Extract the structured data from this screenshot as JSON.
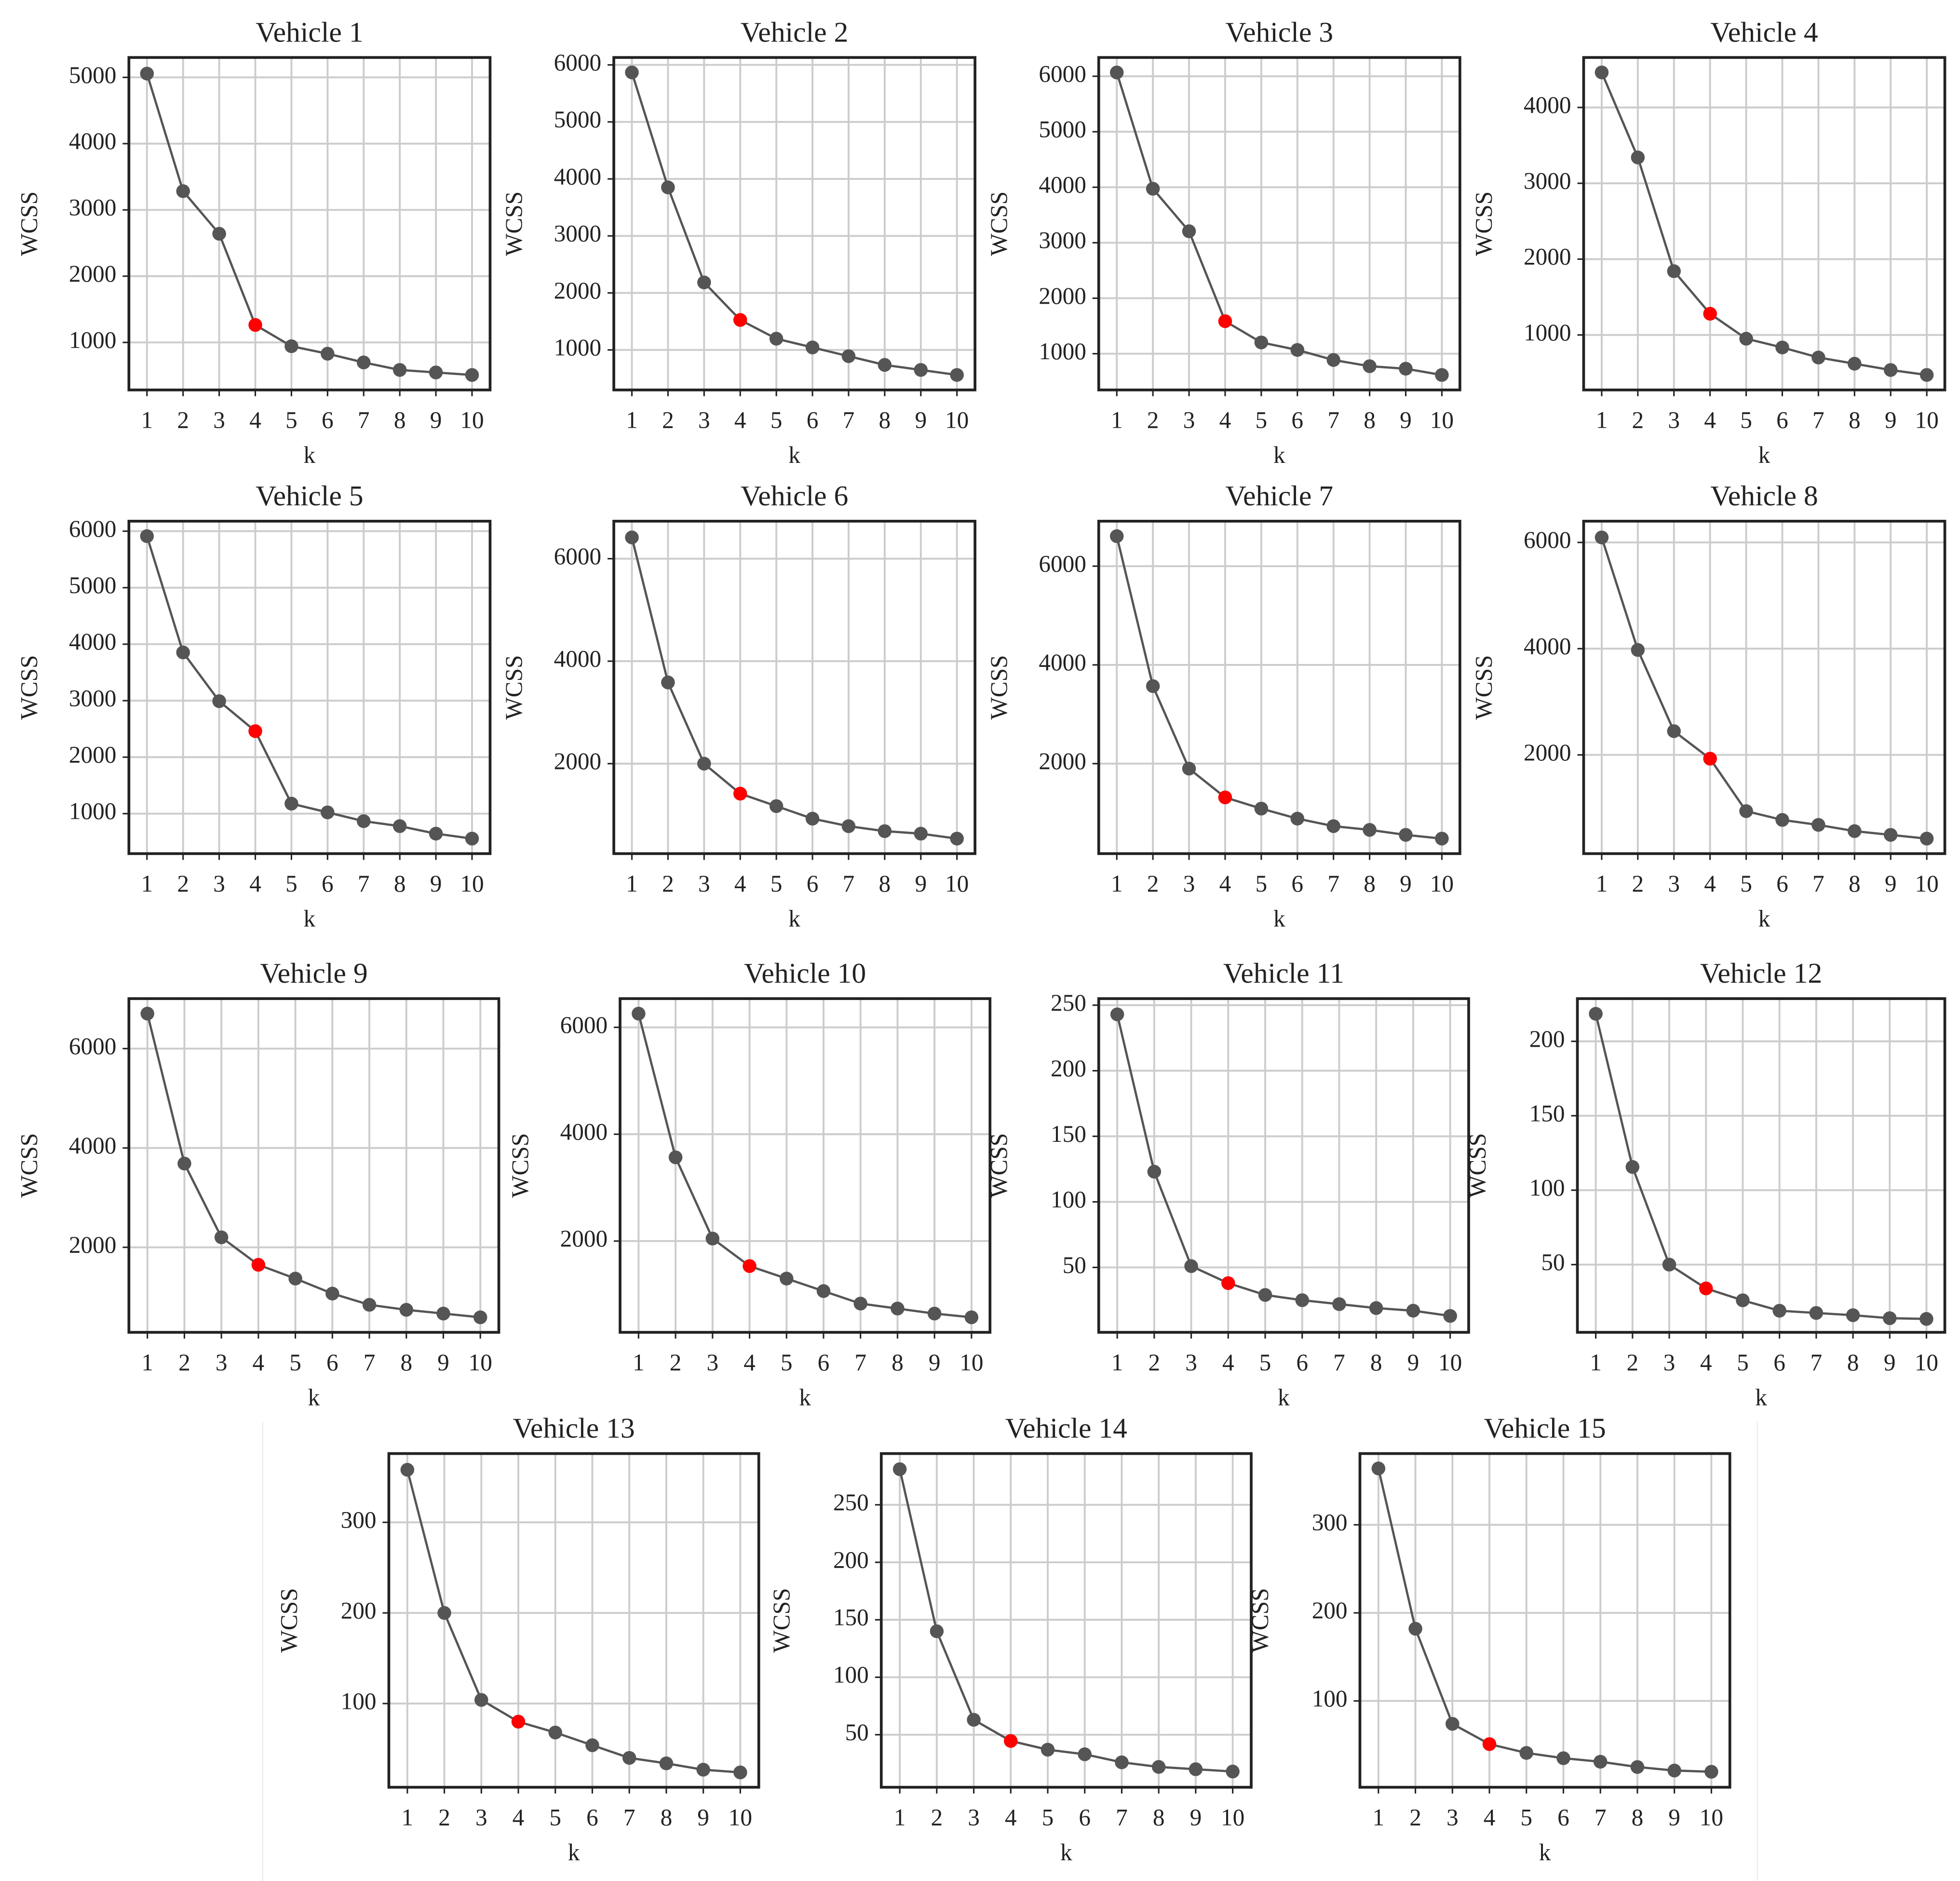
{
  "chart_data": [
    {
      "type": "line",
      "title": "Vehicle 1",
      "xlabel": "k",
      "ylabel": "WCSS",
      "x": [
        1,
        2,
        3,
        4,
        5,
        6,
        7,
        8,
        9,
        10
      ],
      "values": [
        5057,
        3283,
        2640,
        1264,
        943,
        830,
        698,
        585,
        547,
        509
      ],
      "color": "#555555",
      "point_colors": [
        "#555555",
        "#555555",
        "#555555",
        "#ff0000",
        "#555555",
        "#555555",
        "#555555",
        "#555555",
        "#555555",
        "#555555"
      ],
      "xlim": [
        0.5,
        10.5
      ],
      "ylim": [
        283,
        5300
      ],
      "xticks": [
        1,
        2,
        3,
        4,
        5,
        6,
        7,
        8,
        9,
        10
      ],
      "yticks": [
        1000,
        2000,
        3000,
        4000,
        5000
      ],
      "grid": true
    },
    {
      "type": "line",
      "title": "Vehicle 2",
      "xlabel": "k",
      "ylabel": "WCSS",
      "x": [
        1,
        2,
        3,
        4,
        5,
        6,
        7,
        8,
        9,
        10
      ],
      "values": [
        5868,
        3851,
        2184,
        1526,
        1197,
        1044,
        890,
        737,
        649,
        561
      ],
      "color": "#555555",
      "point_colors": [
        "#555555",
        "#555555",
        "#555555",
        "#ff0000",
        "#555555",
        "#555555",
        "#555555",
        "#555555",
        "#555555",
        "#555555"
      ],
      "xlim": [
        0.5,
        10.5
      ],
      "ylim": [
        298,
        6130
      ],
      "xticks": [
        1,
        2,
        3,
        4,
        5,
        6,
        7,
        8,
        9,
        10
      ],
      "yticks": [
        1000,
        2000,
        3000,
        4000,
        5000,
        6000
      ],
      "grid": true
    },
    {
      "type": "line",
      "title": "Vehicle 3",
      "xlabel": "k",
      "ylabel": "WCSS",
      "x": [
        1,
        2,
        3,
        4,
        5,
        6,
        7,
        8,
        9,
        10
      ],
      "values": [
        6068,
        3973,
        3207,
        1586,
        1203,
        1068,
        887,
        775,
        730,
        617
      ],
      "color": "#555555",
      "point_colors": [
        "#555555",
        "#555555",
        "#555555",
        "#ff0000",
        "#555555",
        "#555555",
        "#555555",
        "#555555",
        "#555555",
        "#555555"
      ],
      "xlim": [
        0.5,
        10.5
      ],
      "ylim": [
        347,
        6338
      ],
      "xticks": [
        1,
        2,
        3,
        4,
        5,
        6,
        7,
        8,
        9,
        10
      ],
      "yticks": [
        1000,
        2000,
        3000,
        4000,
        5000,
        6000
      ],
      "grid": true
    },
    {
      "type": "line",
      "title": "Vehicle 4",
      "xlabel": "k",
      "ylabel": "WCSS",
      "x": [
        1,
        2,
        3,
        4,
        5,
        6,
        7,
        8,
        9,
        10
      ],
      "values": [
        4462,
        3341,
        1841,
        1280,
        951,
        835,
        703,
        621,
        538,
        473
      ],
      "color": "#555555",
      "point_colors": [
        "#555555",
        "#555555",
        "#555555",
        "#ff0000",
        "#555555",
        "#555555",
        "#555555",
        "#555555",
        "#555555",
        "#555555"
      ],
      "xlim": [
        0.5,
        10.5
      ],
      "ylim": [
        275,
        4659
      ],
      "xticks": [
        1,
        2,
        3,
        4,
        5,
        6,
        7,
        8,
        9,
        10
      ],
      "yticks": [
        1000,
        2000,
        3000,
        4000
      ],
      "grid": true
    },
    {
      "type": "line",
      "title": "Vehicle 5",
      "xlabel": "k",
      "ylabel": "WCSS",
      "x": [
        1,
        2,
        3,
        4,
        5,
        6,
        7,
        8,
        9,
        10
      ],
      "values": [
        5912,
        3854,
        2991,
        2460,
        1177,
        1022,
        867,
        779,
        646,
        558
      ],
      "color": "#555555",
      "point_colors": [
        "#555555",
        "#555555",
        "#555555",
        "#ff0000",
        "#555555",
        "#555555",
        "#555555",
        "#555555",
        "#555555",
        "#555555"
      ],
      "xlim": [
        0.5,
        10.5
      ],
      "ylim": [
        292,
        6177
      ],
      "xticks": [
        1,
        2,
        3,
        4,
        5,
        6,
        7,
        8,
        9,
        10
      ],
      "yticks": [
        1000,
        2000,
        3000,
        4000,
        5000,
        6000
      ],
      "grid": true
    },
    {
      "type": "line",
      "title": "Vehicle 6",
      "xlabel": "k",
      "ylabel": "WCSS",
      "x": [
        1,
        2,
        3,
        4,
        5,
        6,
        7,
        8,
        9,
        10
      ],
      "values": [
        6415,
        3585,
        2000,
        1415,
        1171,
        927,
        780,
        683,
        634,
        537
      ],
      "color": "#555555",
      "point_colors": [
        "#555555",
        "#555555",
        "#555555",
        "#ff0000",
        "#555555",
        "#555555",
        "#555555",
        "#555555",
        "#555555",
        "#555555"
      ],
      "xlim": [
        0.5,
        10.5
      ],
      "ylim": [
        244,
        6732
      ],
      "xticks": [
        1,
        2,
        3,
        4,
        5,
        6,
        7,
        8,
        9,
        10
      ],
      "yticks": [
        2000,
        4000,
        6000
      ],
      "grid": true
    },
    {
      "type": "line",
      "title": "Vehicle 7",
      "xlabel": "k",
      "ylabel": "WCSS",
      "x": [
        1,
        2,
        3,
        4,
        5,
        6,
        7,
        8,
        9,
        10
      ],
      "values": [
        6608,
        3570,
        1899,
        1316,
        1089,
        886,
        734,
        658,
        557,
        481
      ],
      "color": "#555555",
      "point_colors": [
        "#555555",
        "#555555",
        "#555555",
        "#ff0000",
        "#555555",
        "#555555",
        "#555555",
        "#555555",
        "#555555",
        "#555555"
      ],
      "xlim": [
        0.5,
        10.5
      ],
      "ylim": [
        177,
        6911
      ],
      "xticks": [
        1,
        2,
        3,
        4,
        5,
        6,
        7,
        8,
        9,
        10
      ],
      "yticks": [
        2000,
        4000,
        6000
      ],
      "grid": true
    },
    {
      "type": "line",
      "title": "Vehicle 8",
      "xlabel": "k",
      "ylabel": "WCSS",
      "x": [
        1,
        2,
        3,
        4,
        5,
        6,
        7,
        8,
        9,
        10
      ],
      "values": [
        6094,
        3976,
        2447,
        1929,
        941,
        776,
        682,
        565,
        494,
        424
      ],
      "color": "#555555",
      "point_colors": [
        "#555555",
        "#555555",
        "#555555",
        "#ff0000",
        "#555555",
        "#555555",
        "#555555",
        "#555555",
        "#555555",
        "#555555"
      ],
      "xlim": [
        0.5,
        10.5
      ],
      "ylim": [
        141,
        6400
      ],
      "xticks": [
        1,
        2,
        3,
        4,
        5,
        6,
        7,
        8,
        9,
        10
      ],
      "yticks": [
        2000,
        4000,
        6000
      ],
      "grid": true
    },
    {
      "type": "line",
      "title": "Vehicle 9",
      "xlabel": "k",
      "ylabel": "WCSS",
      "x": [
        1,
        2,
        3,
        4,
        5,
        6,
        7,
        8,
        9,
        10
      ],
      "values": [
        6704,
        3686,
        2201,
        1648,
        1371,
        1069,
        843,
        742,
        667,
        591
      ],
      "color": "#555555",
      "point_colors": [
        "#555555",
        "#555555",
        "#555555",
        "#ff0000",
        "#555555",
        "#555555",
        "#555555",
        "#555555",
        "#555555",
        "#555555"
      ],
      "xlim": [
        0.5,
        10.5
      ],
      "ylim": [
        289,
        7006
      ],
      "xticks": [
        1,
        2,
        3,
        4,
        5,
        6,
        7,
        8,
        9,
        10
      ],
      "yticks": [
        2000,
        4000,
        6000
      ],
      "grid": true
    },
    {
      "type": "line",
      "title": "Vehicle 10",
      "xlabel": "k",
      "ylabel": "WCSS",
      "x": [
        1,
        2,
        3,
        4,
        5,
        6,
        7,
        8,
        9,
        10
      ],
      "values": [
        6257,
        3567,
        2047,
        1532,
        1298,
        1064,
        830,
        737,
        643,
        573
      ],
      "color": "#555555",
      "point_colors": [
        "#555555",
        "#555555",
        "#555555",
        "#ff0000",
        "#555555",
        "#555555",
        "#555555",
        "#555555",
        "#555555",
        "#555555"
      ],
      "xlim": [
        0.5,
        10.5
      ],
      "ylim": [
        292,
        6538
      ],
      "xticks": [
        1,
        2,
        3,
        4,
        5,
        6,
        7,
        8,
        9,
        10
      ],
      "yticks": [
        2000,
        4000,
        6000
      ],
      "grid": true
    },
    {
      "type": "line",
      "title": "Vehicle 11",
      "xlabel": "k",
      "ylabel": "WCSS",
      "x": [
        1,
        2,
        3,
        4,
        5,
        6,
        7,
        8,
        9,
        10
      ],
      "values": [
        243,
        123,
        51,
        38,
        29,
        25,
        22,
        19,
        17,
        13
      ],
      "color": "#555555",
      "point_colors": [
        "#555555",
        "#555555",
        "#555555",
        "#ff0000",
        "#555555",
        "#555555",
        "#555555",
        "#555555",
        "#555555",
        "#555555"
      ],
      "xlim": [
        0.5,
        10.5
      ],
      "ylim": [
        0.5,
        255
      ],
      "xticks": [
        1,
        2,
        3,
        4,
        5,
        6,
        7,
        8,
        9,
        10
      ],
      "yticks": [
        50,
        100,
        150,
        200,
        250
      ],
      "grid": true
    },
    {
      "type": "line",
      "title": "Vehicle 12",
      "xlabel": "k",
      "ylabel": "WCSS",
      "x": [
        1,
        2,
        3,
        4,
        5,
        6,
        7,
        8,
        9,
        10
      ],
      "values": [
        218.5,
        115.6,
        50,
        34,
        26,
        19,
        17.5,
        16,
        14,
        13.5
      ],
      "color": "#555555",
      "point_colors": [
        "#555555",
        "#555555",
        "#555555",
        "#ff0000",
        "#555555",
        "#555555",
        "#555555",
        "#555555",
        "#555555",
        "#555555"
      ],
      "xlim": [
        0.5,
        10.5
      ],
      "ylim": [
        4.5,
        228.7
      ],
      "xticks": [
        1,
        2,
        3,
        4,
        5,
        6,
        7,
        8,
        9,
        10
      ],
      "yticks": [
        50,
        100,
        150,
        200
      ],
      "grid": true
    },
    {
      "type": "line",
      "title": "Vehicle 13",
      "xlabel": "k",
      "ylabel": "WCSS",
      "x": [
        1,
        2,
        3,
        4,
        5,
        6,
        7,
        8,
        9,
        10
      ],
      "values": [
        358,
        200,
        104,
        80,
        68,
        54,
        40,
        34,
        27,
        24
      ],
      "color": "#555555",
      "point_colors": [
        "#555555",
        "#555555",
        "#555555",
        "#ff0000",
        "#555555",
        "#555555",
        "#555555",
        "#555555",
        "#555555",
        "#555555"
      ],
      "xlim": [
        0.5,
        10.5
      ],
      "ylim": [
        7.6,
        375.9
      ],
      "xticks": [
        1,
        2,
        3,
        4,
        5,
        6,
        7,
        8,
        9,
        10
      ],
      "yticks": [
        100,
        200,
        300
      ],
      "grid": true
    },
    {
      "type": "line",
      "title": "Vehicle 14",
      "xlabel": "k",
      "ylabel": "WCSS",
      "x": [
        1,
        2,
        3,
        4,
        5,
        6,
        7,
        8,
        9,
        10
      ],
      "values": [
        281,
        140,
        63,
        44.6,
        37,
        33,
        26,
        22,
        20,
        18
      ],
      "color": "#555555",
      "point_colors": [
        "#555555",
        "#555555",
        "#555555",
        "#ff0000",
        "#555555",
        "#555555",
        "#555555",
        "#555555",
        "#555555",
        "#555555"
      ],
      "xlim": [
        0.5,
        10.5
      ],
      "ylim": [
        4.3,
        294.6
      ],
      "xticks": [
        1,
        2,
        3,
        4,
        5,
        6,
        7,
        8,
        9,
        10
      ],
      "yticks": [
        50,
        100,
        150,
        200,
        250
      ],
      "grid": true
    },
    {
      "type": "line",
      "title": "Vehicle 15",
      "xlabel": "k",
      "ylabel": "WCSS",
      "x": [
        1,
        2,
        3,
        4,
        5,
        6,
        7,
        8,
        9,
        10
      ],
      "values": [
        364,
        182,
        74,
        51,
        41,
        35,
        31,
        25,
        21,
        19.6
      ],
      "color": "#555555",
      "point_colors": [
        "#555555",
        "#555555",
        "#555555",
        "#ff0000",
        "#555555",
        "#555555",
        "#555555",
        "#555555",
        "#555555",
        "#555555"
      ],
      "xlim": [
        0.5,
        10.5
      ],
      "ylim": [
        2,
        380.9
      ],
      "xticks": [
        1,
        2,
        3,
        4,
        5,
        6,
        7,
        8,
        9,
        10
      ],
      "yticks": [
        100,
        200,
        300
      ],
      "grid": true
    }
  ]
}
